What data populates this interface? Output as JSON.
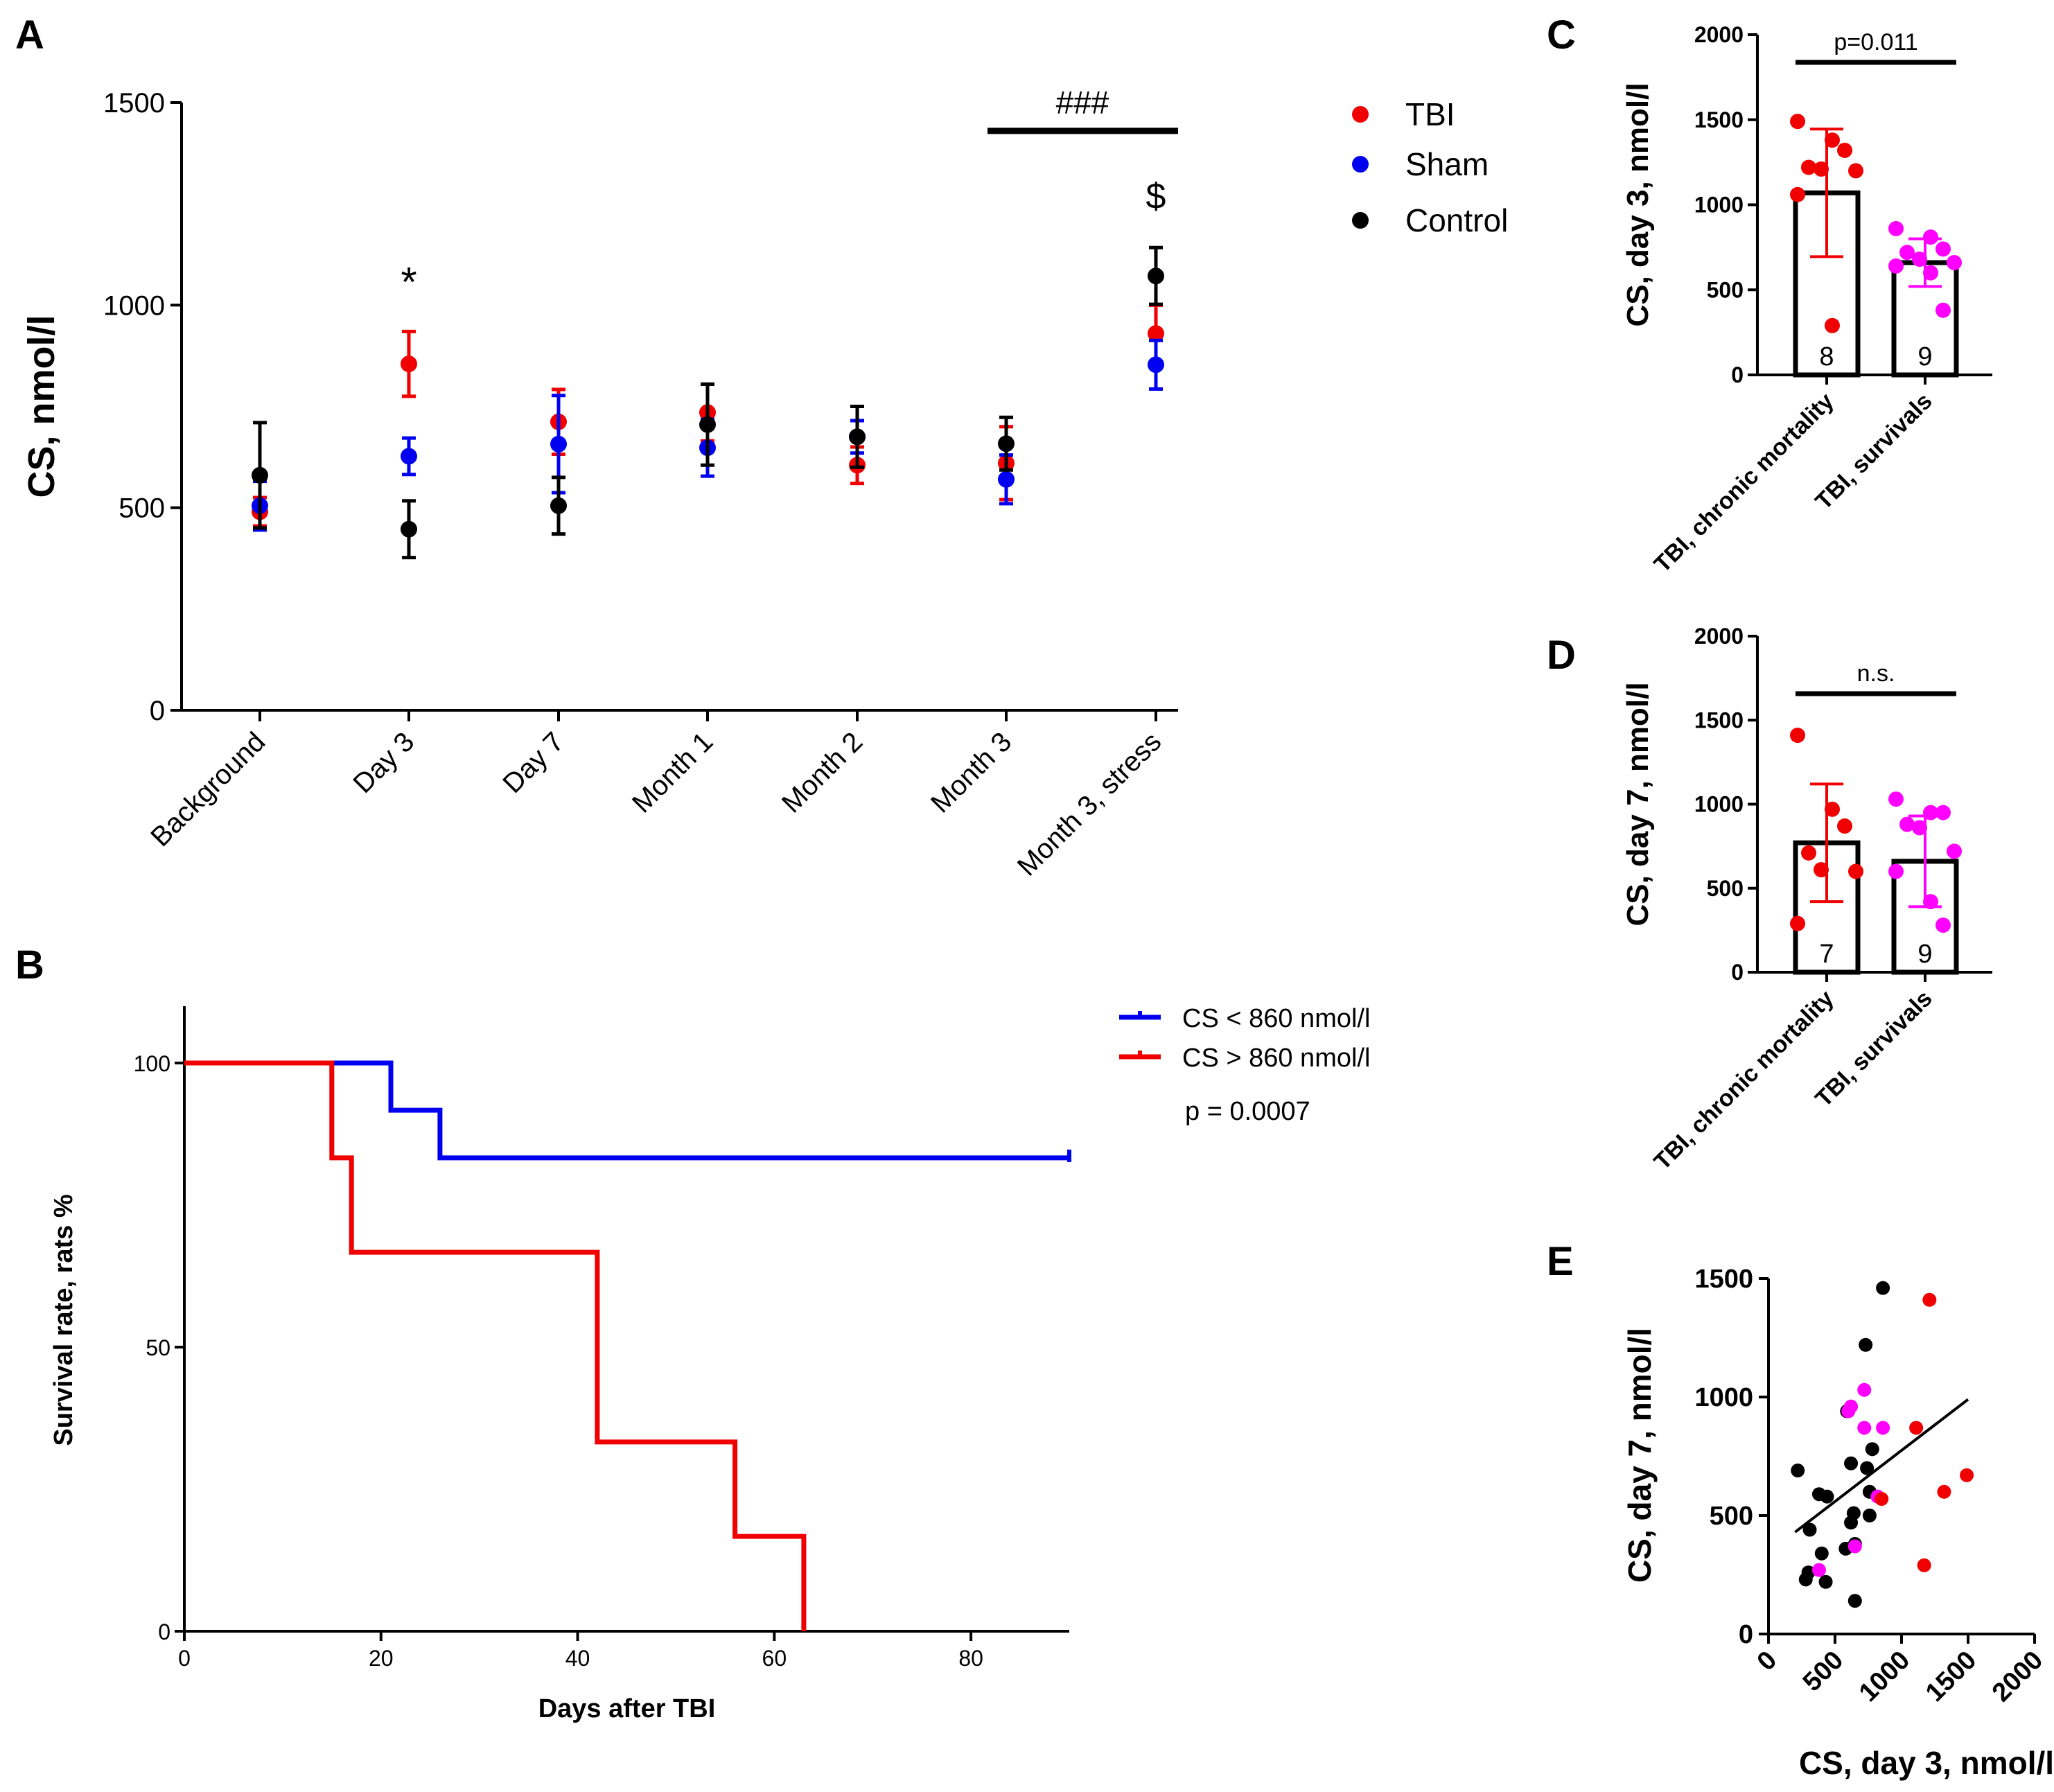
{
  "colors": {
    "tbi": "#f00000",
    "sham": "#0000f0",
    "control": "#000000",
    "magenta": "#ff00ff",
    "axis": "#000000"
  },
  "chart_data": [
    {
      "panel": "A",
      "type": "scatter",
      "ylabel": "CS, nmol/l",
      "ylim": [
        0,
        1500
      ],
      "yticks": [
        "0",
        "500",
        "1000",
        "1500"
      ],
      "categories": [
        "Background",
        "Day 3",
        "Day 7",
        "Month 1",
        "Month 2",
        "Month 3",
        "Month 3, stress"
      ],
      "series": [
        {
          "name": "TBI",
          "color": "#f00000",
          "values": [
            490,
            855,
            712,
            735,
            605,
            610,
            930
          ],
          "err": [
            35,
            80,
            80,
            70,
            45,
            90,
            70
          ]
        },
        {
          "name": "Sham",
          "color": "#0000f0",
          "values": [
            505,
            627,
            657,
            648,
            675,
            570,
            853
          ],
          "err": [
            60,
            45,
            120,
            70,
            40,
            60,
            60
          ]
        },
        {
          "name": "Control",
          "color": "#000000",
          "values": [
            580,
            447,
            505,
            705,
            675,
            658,
            1072
          ],
          "err": [
            130,
            70,
            70,
            100,
            75,
            65,
            70
          ]
        }
      ],
      "annotations": [
        {
          "text": "*",
          "category": "Day 3",
          "y": 1090
        },
        {
          "text": "###",
          "from": "Month 3",
          "to": "Month 3, stress",
          "y": 1430
        },
        {
          "text": "$",
          "category": "Month 3, stress",
          "y": 1270
        }
      ]
    },
    {
      "panel": "B",
      "type": "line",
      "xlabel": "Days after TBI",
      "ylabel": "Survival rate, rats %",
      "xlim": [
        0,
        90
      ],
      "ylim": [
        0,
        110
      ],
      "xticks": [
        "0",
        "20",
        "40",
        "60",
        "80"
      ],
      "yticks": [
        "0",
        "50",
        "100"
      ],
      "pvalue": "p = 0.0007",
      "series": [
        {
          "name": "CS < 860 nmol/l",
          "color": "#0000f0",
          "steps": [
            [
              0,
              100
            ],
            [
              21,
              100
            ],
            [
              21,
              91.7
            ],
            [
              26,
              91.7
            ],
            [
              26,
              83.3
            ],
            [
              90,
              83.3
            ]
          ]
        },
        {
          "name": "CS > 860 nmol/l",
          "color": "#f00000",
          "steps": [
            [
              0,
              100
            ],
            [
              15,
              100
            ],
            [
              15,
              83.3
            ],
            [
              17,
              83.3
            ],
            [
              17,
              66.7
            ],
            [
              42,
              66.7
            ],
            [
              42,
              33.3
            ],
            [
              56,
              33.3
            ],
            [
              56,
              16.7
            ],
            [
              63,
              16.7
            ],
            [
              63,
              0
            ]
          ]
        }
      ]
    },
    {
      "panel": "C",
      "type": "bar",
      "ylabel": "CS, day 3, nmol/l",
      "ylim": [
        0,
        2000
      ],
      "yticks": [
        "0",
        "500",
        "1000",
        "1500",
        "2000"
      ],
      "categories": [
        "TBI, chronic mortality",
        "TBI, survivals"
      ],
      "values": [
        1070,
        660
      ],
      "sd": [
        375,
        140
      ],
      "counts": [
        "8",
        "9"
      ],
      "significance": "p=0.011",
      "points": [
        [
          1490,
          1380,
          1320,
          1220,
          1210,
          1200,
          1060,
          290
        ],
        [
          860,
          810,
          740,
          720,
          680,
          660,
          640,
          600,
          380
        ]
      ]
    },
    {
      "panel": "D",
      "type": "bar",
      "ylabel": "CS, day 7, nmol/l",
      "ylim": [
        0,
        2000
      ],
      "yticks": [
        "0",
        "500",
        "1000",
        "1500",
        "2000"
      ],
      "categories": [
        "TBI, chronic mortality",
        "TBI, survivals"
      ],
      "values": [
        770,
        660
      ],
      "sd": [
        350,
        270
      ],
      "counts": [
        "7",
        "9"
      ],
      "significance": "n.s.",
      "points": [
        [
          1410,
          970,
          870,
          710,
          610,
          600,
          290
        ],
        [
          1030,
          950,
          950,
          880,
          860,
          720,
          600,
          420,
          280
        ]
      ]
    },
    {
      "panel": "E",
      "type": "scatter",
      "xlabel": "CS, day 3, nmol/l",
      "ylabel": "CS, day 7, nmol/l",
      "xlim": [
        0,
        2000
      ],
      "ylim": [
        0,
        1500
      ],
      "xticks": [
        "0",
        "500",
        "1000",
        "1500",
        "2000"
      ],
      "yticks": [
        "0",
        "500",
        "1000",
        "1500"
      ],
      "fit": [
        [
          200,
          430
        ],
        [
          1500,
          990
        ]
      ],
      "groups": [
        {
          "color": "#000000",
          "points": [
            [
              860,
              1460
            ],
            [
              730,
              1220
            ],
            [
              590,
              940
            ],
            [
              780,
              780
            ],
            [
              620,
              720
            ],
            [
              740,
              700
            ],
            [
              220,
              690
            ],
            [
              380,
              590
            ],
            [
              440,
              580
            ],
            [
              760,
              600
            ],
            [
              640,
              510
            ],
            [
              760,
              500
            ],
            [
              310,
              440
            ],
            [
              620,
              470
            ],
            [
              580,
              360
            ],
            [
              400,
              340
            ],
            [
              300,
              260
            ],
            [
              280,
              230
            ],
            [
              430,
              220
            ],
            [
              650,
              140
            ],
            [
              650,
              380
            ]
          ]
        },
        {
          "color": "#ff00ff",
          "points": [
            [
              620,
              960
            ],
            [
              720,
              1030
            ],
            [
              720,
              870
            ],
            [
              860,
              870
            ],
            [
              820,
              580
            ],
            [
              650,
              370
            ],
            [
              380,
              270
            ],
            [
              600,
              940
            ]
          ]
        },
        {
          "color": "#f00000",
          "points": [
            [
              1210,
              1410
            ],
            [
              1110,
              870
            ],
            [
              1490,
              670
            ],
            [
              1320,
              600
            ],
            [
              1170,
              290
            ],
            [
              850,
              570
            ]
          ]
        }
      ]
    }
  ]
}
